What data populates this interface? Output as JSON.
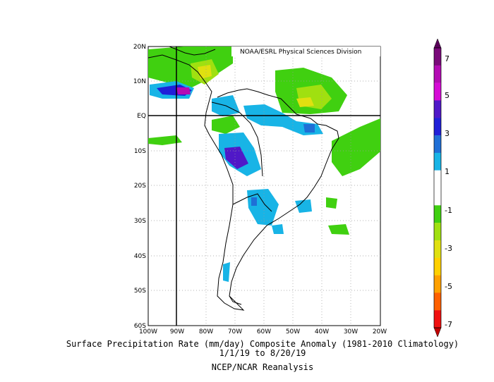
{
  "map": {
    "credit": "NOAA/ESRL Physical Sciences Division",
    "lat_labels": [
      "20N",
      "10N",
      "EQ",
      "10S",
      "20S",
      "30S",
      "40S",
      "50S",
      "60S"
    ],
    "lon_labels": [
      "100W",
      "90W",
      "80W",
      "70W",
      "60W",
      "50W",
      "40W",
      "30W",
      "20W"
    ],
    "extent": {
      "lon": [
        -100,
        -20
      ],
      "lat": [
        -60,
        20
      ]
    }
  },
  "caption": {
    "line1": "Surface Precipitation Rate (mm/day) Composite Anomaly (1981-2010 Climatology)",
    "line2": "1/1/19  to 8/20/19",
    "line3": "NCEP/NCAR Reanalysis"
  },
  "colorbar": {
    "labels": [
      "7",
      "5",
      "3",
      "1",
      "-1",
      "-3",
      "-5",
      "-7"
    ],
    "colors": [
      "#7a0a7a",
      "#b40bb4",
      "#d60bd6",
      "#5018c8",
      "#2020d8",
      "#1f6fd6",
      "#18b4e6",
      "#ffffff",
      "#ffffff",
      "#40d010",
      "#a0e010",
      "#e0e010",
      "#ffd000",
      "#ffa000",
      "#ff6000",
      "#f01010"
    ]
  }
}
